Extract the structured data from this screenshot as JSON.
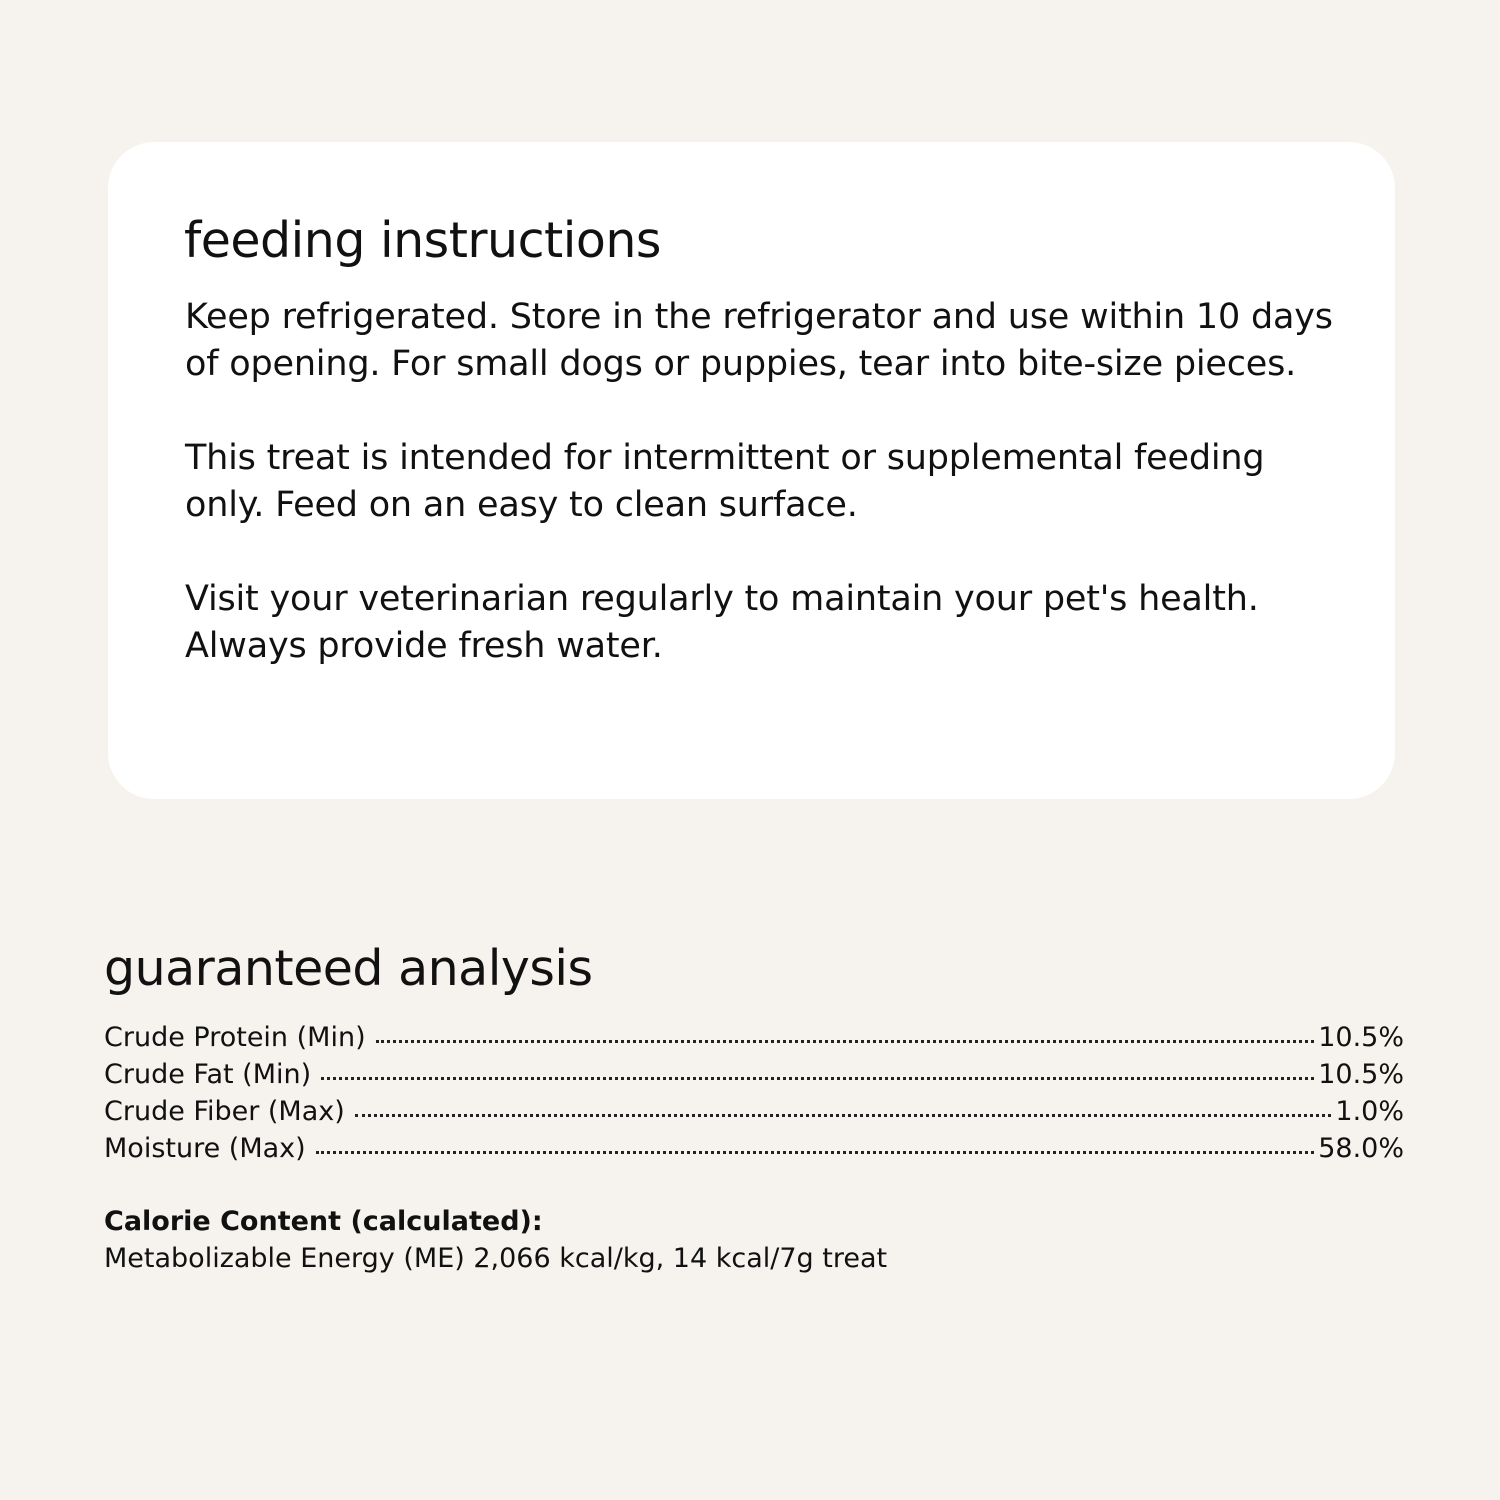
{
  "feeding": {
    "title": "feeding instructions",
    "paragraphs": [
      "Keep refrigerated. Store in the refrigerator and use within 10 days of opening. For small dogs or puppies, tear into bite-size pieces.",
      "This treat is intended for intermittent or supplemental feeding only. Feed on an easy to clean surface.",
      "Visit your veterinarian regularly to maintain your pet's health. Always provide fresh water."
    ]
  },
  "analysis": {
    "title": "guaranteed analysis",
    "rows": [
      {
        "label": "Crude Protein (Min)",
        "value": "10.5%"
      },
      {
        "label": "Crude Fat (Min)",
        "value": "10.5%"
      },
      {
        "label": "Crude Fiber (Max)",
        "value": "1.0%"
      },
      {
        "label": "Moisture (Max)",
        "value": "58.0%"
      }
    ],
    "calorie_title": "Calorie Content (calculated):",
    "calorie_text": "Metabolizable Energy (ME) 2,066 kcal/kg, 14 kcal/7g treat"
  }
}
